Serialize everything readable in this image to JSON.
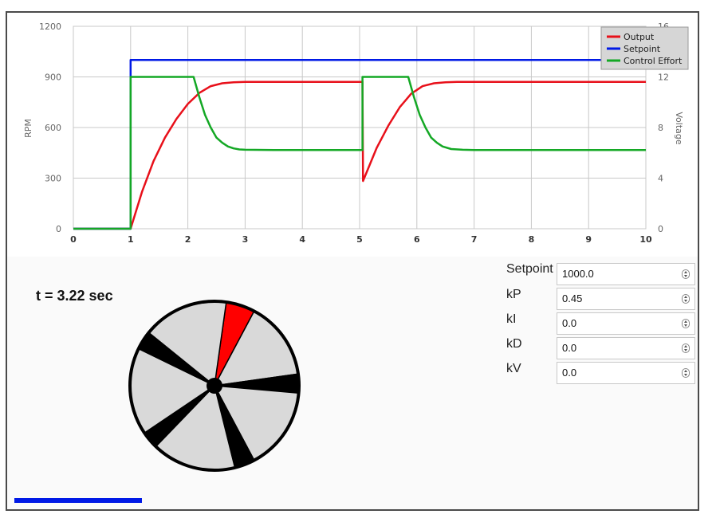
{
  "chart_data": {
    "type": "line",
    "xlabel": "",
    "ylabel": "RPM",
    "y2label": "Voltage",
    "xlim": [
      0,
      10
    ],
    "ylim": [
      0,
      1200
    ],
    "y2lim": [
      0,
      16
    ],
    "x_ticks": [
      "0",
      "1",
      "2",
      "3",
      "4",
      "5",
      "6",
      "7",
      "8",
      "9",
      "10"
    ],
    "y_ticks": [
      "0",
      "300",
      "600",
      "900",
      "1200"
    ],
    "y2_ticks": [
      "0",
      "4",
      "8",
      "12",
      "16"
    ],
    "grid": true,
    "legend": "top-right",
    "series": [
      {
        "name": "Output",
        "axis": "left",
        "color": "#e8101a",
        "x": [
          0,
          1,
          1.2,
          1.4,
          1.6,
          1.8,
          2.0,
          2.2,
          2.4,
          2.6,
          2.8,
          3.0,
          3.5,
          4.0,
          4.5,
          5.0,
          5.05,
          5.06,
          5.3,
          5.5,
          5.7,
          5.9,
          6.1,
          6.3,
          6.5,
          6.7,
          7.0,
          8.0,
          9.0,
          10.0
        ],
        "values": [
          0,
          0,
          220,
          400,
          540,
          650,
          740,
          805,
          845,
          862,
          868,
          870,
          870,
          870,
          870,
          870,
          870,
          283,
          480,
          610,
          720,
          800,
          845,
          862,
          868,
          870,
          870,
          870,
          870,
          870
        ]
      },
      {
        "name": "Setpoint",
        "axis": "left",
        "color": "#0019e6",
        "x": [
          0,
          1,
          1,
          10
        ],
        "values": [
          0,
          0,
          1000,
          1000
        ]
      },
      {
        "name": "Control Effort",
        "axis": "right",
        "color": "#14a825",
        "x": [
          0,
          1,
          1,
          2.1,
          2.2,
          2.3,
          2.4,
          2.5,
          2.6,
          2.7,
          2.8,
          2.9,
          3.0,
          3.5,
          4.0,
          5.0,
          5.05,
          5.05,
          5.85,
          5.95,
          6.05,
          6.15,
          6.25,
          6.35,
          6.45,
          6.6,
          6.8,
          7.0,
          8.0,
          9.0,
          10.0
        ],
        "values": [
          0,
          0,
          12,
          12,
          10.4,
          9.0,
          8.0,
          7.2,
          6.8,
          6.5,
          6.35,
          6.27,
          6.24,
          6.22,
          6.22,
          6.22,
          6.22,
          12,
          12,
          10.4,
          9.0,
          8.0,
          7.2,
          6.8,
          6.5,
          6.3,
          6.24,
          6.22,
          6.22,
          6.22,
          6.22
        ]
      }
    ]
  },
  "simulation": {
    "time_label": "t = 3.22 sec",
    "progress_fraction": 0.322
  },
  "wheel": {
    "highlight_color": "#ff0000",
    "dark_color": "#000000",
    "light_color": "#d9d9d9"
  },
  "params": [
    {
      "label": "Setpoint",
      "value": "1000.0"
    },
    {
      "label": "kP",
      "value": "0.45"
    },
    {
      "label": "kI",
      "value": "0.0"
    },
    {
      "label": "kD",
      "value": "0.0"
    },
    {
      "label": "kV",
      "value": "0.0"
    }
  ]
}
